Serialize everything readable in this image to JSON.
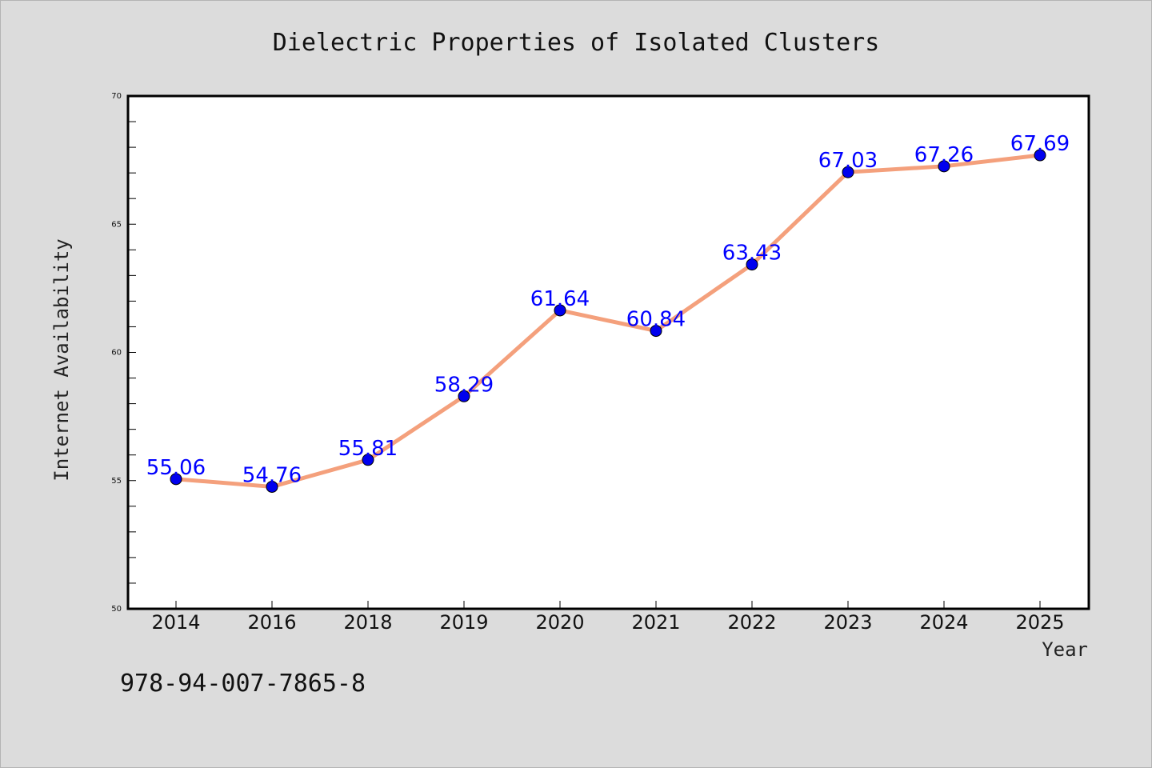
{
  "chart_data": {
    "type": "line",
    "title": "Dielectric Properties of Isolated Clusters",
    "xlabel": "Year",
    "ylabel": "Internet Availability",
    "categories": [
      "2014",
      "2016",
      "2018",
      "2019",
      "2020",
      "2021",
      "2022",
      "2023",
      "2024",
      "2025"
    ],
    "series": [
      {
        "values": [
          55.06,
          54.76,
          55.81,
          58.29,
          61.64,
          60.84,
          63.43,
          67.03,
          67.26,
          67.69
        ],
        "labels": [
          "55.06",
          "54.76",
          "55.81",
          "58.29",
          "61.64",
          "60.84",
          "63.43",
          "67.03",
          "67.26",
          "67.69"
        ],
        "line_color": "#f4a07c",
        "marker_color": "#0000ee"
      }
    ],
    "ylim": [
      50,
      70
    ],
    "yticks": [
      "50",
      "55",
      "60",
      "65",
      "70"
    ],
    "grid": false,
    "legend": "none"
  },
  "annotation": "978-94-007-7865-8",
  "colors": {
    "background": "#dcdcdc",
    "plot_background": "#ffffff",
    "label_color": "#0000ff"
  }
}
